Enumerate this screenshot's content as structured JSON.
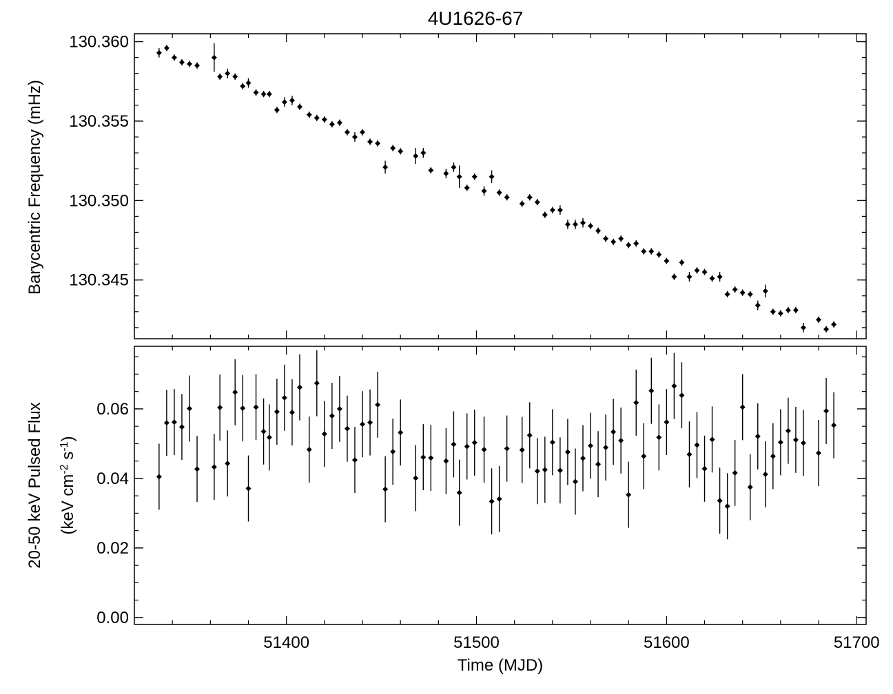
{
  "chart_data": {
    "type": "scatter",
    "title": "4U1626-67",
    "xlabel": "Time (MJD)",
    "xlim": [
      51320,
      51705
    ],
    "x_ticks": [
      51400,
      51500,
      51600,
      51700
    ],
    "x_tick_labels": [
      "51400",
      "51500",
      "51600",
      "51700"
    ],
    "marker_color": "#000000",
    "panels": [
      {
        "name": "frequency",
        "ylabel": "Barycentric Frequency (mHz)",
        "ylim": [
          130.3413,
          130.3605
        ],
        "y_ticks": [
          130.345,
          130.35,
          130.355,
          130.36
        ],
        "y_tick_labels": [
          "130.345",
          "130.350",
          "130.355",
          "130.360"
        ],
        "x": [
          51333,
          51337,
          51341,
          51345,
          51349,
          51353,
          51362,
          51365,
          51369,
          51373,
          51377,
          51380,
          51384,
          51388,
          51391,
          51395,
          51399,
          51403,
          51407,
          51412,
          51416,
          51420,
          51424,
          51428,
          51432,
          51436,
          51440,
          51444,
          51448,
          51452,
          51456,
          51460,
          51468,
          51472,
          51476,
          51484,
          51488,
          51491,
          51495,
          51499,
          51504,
          51508,
          51512,
          51516,
          51524,
          51528,
          51532,
          51536,
          51540,
          51544,
          51548,
          51552,
          51556,
          51560,
          51564,
          51568,
          51572,
          51576,
          51580,
          51584,
          51588,
          51592,
          51596,
          51600,
          51604,
          51608,
          51612,
          51616,
          51620,
          51624,
          51628,
          51632,
          51636,
          51640,
          51644,
          51648,
          51652,
          51656,
          51660,
          51664,
          51668,
          51672,
          51680,
          51684,
          51688
        ],
        "y": [
          130.3593,
          130.3596,
          130.359,
          130.3587,
          130.3586,
          130.3585,
          130.359,
          130.3578,
          130.358,
          130.3578,
          130.3572,
          130.3574,
          130.3568,
          130.3567,
          130.3567,
          130.3557,
          130.3562,
          130.3563,
          130.3559,
          130.3554,
          130.3552,
          130.3551,
          130.3548,
          130.3549,
          130.3543,
          130.354,
          130.3543,
          130.3537,
          130.3536,
          130.3521,
          130.3533,
          130.3531,
          130.3528,
          130.353,
          130.3519,
          130.3517,
          130.3521,
          130.3515,
          130.3508,
          130.3515,
          130.3506,
          130.3515,
          130.3505,
          130.3502,
          130.3498,
          130.3502,
          130.3499,
          130.3491,
          130.3494,
          130.3494,
          130.3485,
          130.3485,
          130.3486,
          130.3484,
          130.3481,
          130.3476,
          130.3474,
          130.3476,
          130.3472,
          130.3473,
          130.3468,
          130.3468,
          130.3466,
          130.3462,
          130.3452,
          130.3461,
          130.3452,
          130.3456,
          130.3455,
          130.3451,
          130.3452,
          130.3441,
          130.3444,
          130.3442,
          130.3441,
          130.3434,
          130.3443,
          130.343,
          130.3429,
          130.3431,
          130.3431,
          130.342,
          130.3425,
          130.3419,
          130.3422
        ],
        "yerr": [
          0.0003,
          0.0002,
          0.0002,
          0.0002,
          0.0002,
          0.0002,
          0.0009,
          0.0002,
          0.0003,
          0.0002,
          0.0002,
          0.0003,
          0.0002,
          0.0002,
          0.0002,
          0.0002,
          0.0003,
          0.0003,
          0.0002,
          0.0002,
          0.0002,
          0.0002,
          0.0002,
          0.0002,
          0.0002,
          0.0003,
          0.0002,
          0.0002,
          0.0002,
          0.0004,
          0.0002,
          0.0002,
          0.0005,
          0.0003,
          0.0002,
          0.0003,
          0.0003,
          0.0007,
          0.0002,
          0.0002,
          0.0003,
          0.0004,
          0.0002,
          0.0002,
          0.0002,
          0.0002,
          0.0002,
          0.0002,
          0.0002,
          0.0003,
          0.0003,
          0.0003,
          0.0003,
          0.0002,
          0.0002,
          0.0002,
          0.0002,
          0.0002,
          0.0002,
          0.0002,
          0.0002,
          0.0002,
          0.0002,
          0.0002,
          0.0002,
          0.0002,
          0.0003,
          0.0002,
          0.0002,
          0.0002,
          0.0003,
          0.0002,
          0.0002,
          0.0002,
          0.0002,
          0.0003,
          0.0004,
          0.0002,
          0.0002,
          0.0002,
          0.0002,
          0.0003,
          0.0002,
          0.0002,
          0.0002
        ]
      },
      {
        "name": "pulsed-flux",
        "ylabel_line1": "20-50 keV Pulsed Flux",
        "ylabel_line2": "(keV cm-2 s-1)",
        "ylim": [
          -0.002,
          0.078
        ],
        "y_ticks": [
          0.0,
          0.02,
          0.04,
          0.06
        ],
        "y_tick_labels": [
          "0.00",
          "0.02",
          "0.04",
          "0.06"
        ],
        "x": [
          51333,
          51337,
          51341,
          51345,
          51349,
          51353,
          51362,
          51365,
          51369,
          51373,
          51377,
          51380,
          51384,
          51388,
          51391,
          51395,
          51399,
          51403,
          51407,
          51412,
          51416,
          51420,
          51424,
          51428,
          51432,
          51436,
          51440,
          51444,
          51448,
          51452,
          51456,
          51460,
          51468,
          51472,
          51476,
          51484,
          51488,
          51491,
          51495,
          51499,
          51504,
          51508,
          51512,
          51516,
          51524,
          51528,
          51532,
          51536,
          51540,
          51544,
          51548,
          51552,
          51556,
          51560,
          51564,
          51568,
          51572,
          51576,
          51580,
          51584,
          51588,
          51592,
          51596,
          51600,
          51604,
          51608,
          51612,
          51616,
          51620,
          51624,
          51628,
          51632,
          51636,
          51640,
          51644,
          51648,
          51652,
          51656,
          51660,
          51664,
          51668,
          51672,
          51680,
          51684,
          51688
        ],
        "y": [
          0.0405,
          0.056,
          0.0562,
          0.0548,
          0.0601,
          0.0427,
          0.0433,
          0.0604,
          0.0443,
          0.0648,
          0.0602,
          0.0371,
          0.0605,
          0.0535,
          0.0518,
          0.0592,
          0.0632,
          0.059,
          0.0662,
          0.0483,
          0.0674,
          0.0528,
          0.058,
          0.06,
          0.0543,
          0.0453,
          0.0556,
          0.0561,
          0.0612,
          0.0369,
          0.0477,
          0.0532,
          0.0401,
          0.0461,
          0.0459,
          0.045,
          0.0498,
          0.0359,
          0.0492,
          0.0503,
          0.0483,
          0.0334,
          0.0341,
          0.0486,
          0.0482,
          0.0524,
          0.0421,
          0.0425,
          0.0504,
          0.0423,
          0.0476,
          0.0391,
          0.0458,
          0.0494,
          0.0441,
          0.0489,
          0.0534,
          0.0509,
          0.0353,
          0.0618,
          0.0464,
          0.0652,
          0.0518,
          0.0562,
          0.0666,
          0.0639,
          0.0469,
          0.0496,
          0.0428,
          0.0512,
          0.0336,
          0.032,
          0.0416,
          0.0605,
          0.0375,
          0.0521,
          0.0412,
          0.0464,
          0.0504,
          0.0537,
          0.0511,
          0.0502,
          0.0473,
          0.0594,
          0.0553
        ]
      }
    ]
  }
}
